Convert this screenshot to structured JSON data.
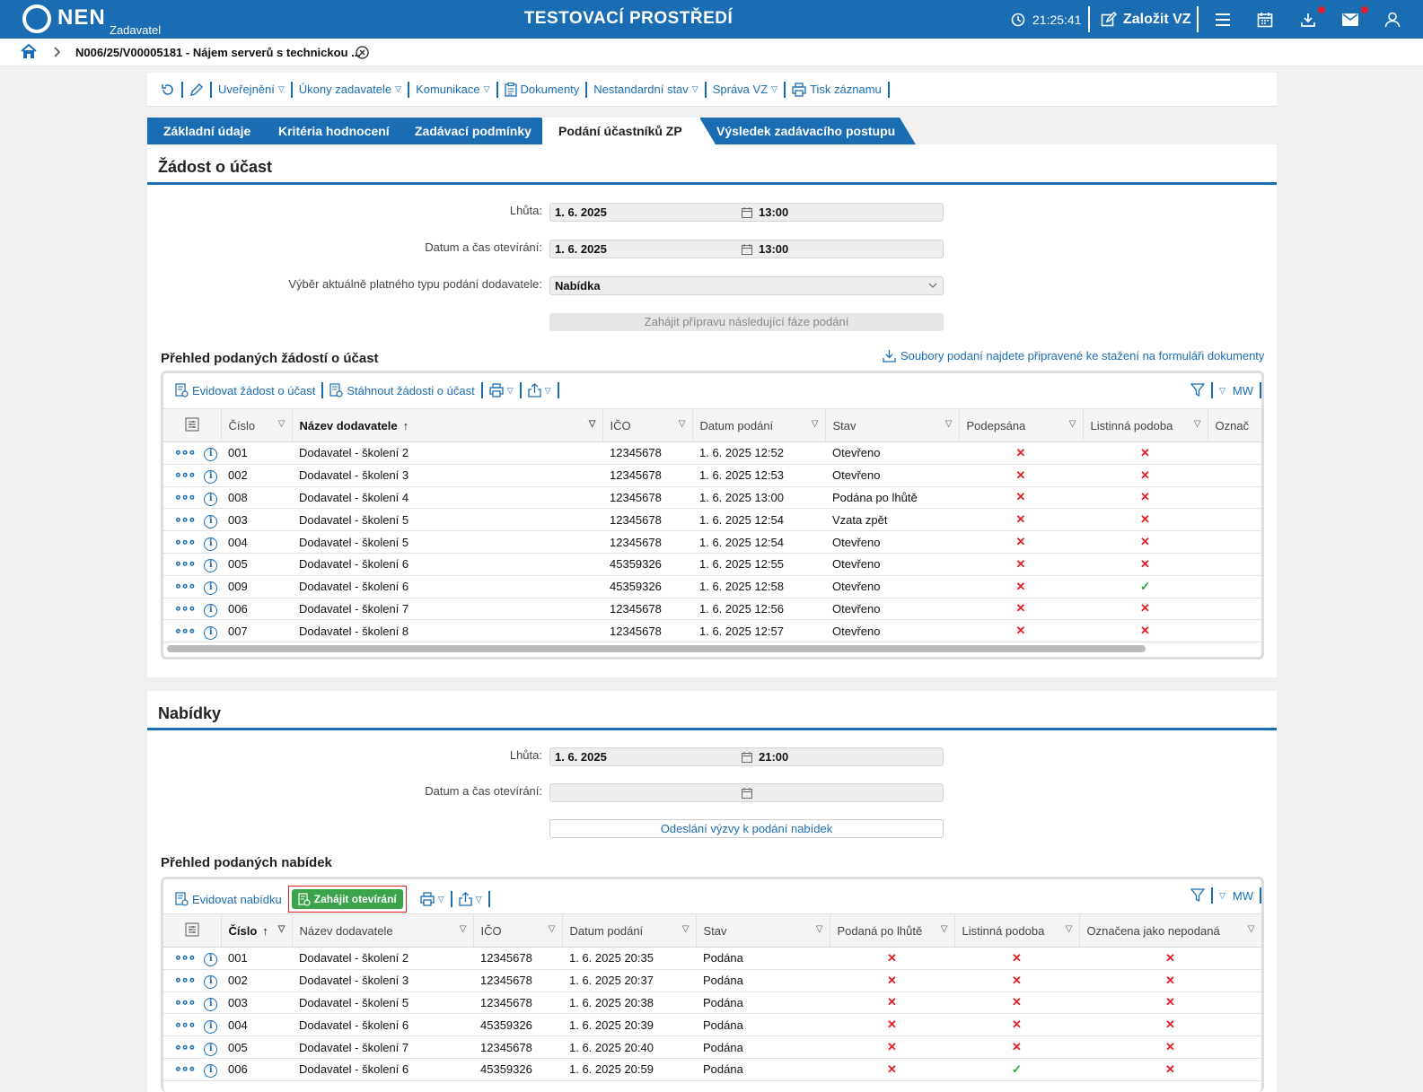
{
  "header": {
    "logo": "NEN",
    "logo_sub": "Zadavatel",
    "env_title": "TESTOVACÍ PROSTŘEDÍ",
    "time": "21:25:41",
    "create_label": "Založit VZ"
  },
  "breadcrumb": {
    "title": "N006/25/V00005181 - Nájem serverů s technickou ..."
  },
  "toolbar": {
    "items": [
      "Uveřejnění",
      "Úkony zadavatele",
      "Komunikace",
      "Dokumenty",
      "Nestandardní stav",
      "Správa VZ",
      "Tisk záznamu"
    ]
  },
  "tabs": [
    "Základní údaje",
    "Kritéria hodnocení",
    "Zadávací podmínky",
    "Podání účastníků ZP",
    "Výsledek zadávacího postupu"
  ],
  "zadost": {
    "title": "Žádost o účast",
    "lhuta_label": "Lhůta:",
    "lhuta_date": "1. 6. 2025",
    "lhuta_time": "13:00",
    "open_label": "Datum a čas otevírání:",
    "open_date": "1. 6. 2025",
    "open_time": "13:00",
    "type_label": "Výběr aktuálně platného typu podání dodavatele:",
    "type_value": "Nabídka",
    "prep_button": "Zahájit přípravu následující fáze podání",
    "overview_title": "Přehled podaných žádostí o účast",
    "download_link": "Soubory podaní najdete připravené ke stažení na formuláři dokumenty",
    "btn_evidovat": "Evidovat žádost o účast",
    "btn_stahnout": "Stáhnout žádosti o účast",
    "mw": "MW",
    "columns": [
      "Číslo",
      "Název dodavatele",
      "IČO",
      "Datum podání",
      "Stav",
      "Podepsána",
      "Listinná podoba",
      "Označ"
    ],
    "rows": [
      {
        "cislo": "001",
        "nazev": "Dodavatel - školení 2",
        "ico": "12345678",
        "datum": "1. 6. 2025 12:52",
        "stav": "Otevřeno",
        "podepsana": "✕",
        "listinna": "✕"
      },
      {
        "cislo": "002",
        "nazev": "Dodavatel - školení 3",
        "ico": "12345678",
        "datum": "1. 6. 2025 12:53",
        "stav": "Otevřeno",
        "podepsana": "✕",
        "listinna": "✕"
      },
      {
        "cislo": "008",
        "nazev": "Dodavatel - školení 4",
        "ico": "12345678",
        "datum": "1. 6. 2025 13:00",
        "stav": "Podána po lhůtě",
        "podepsana": "✕",
        "listinna": "✕"
      },
      {
        "cislo": "003",
        "nazev": "Dodavatel - školení 5",
        "ico": "12345678",
        "datum": "1. 6. 2025 12:54",
        "stav": "Vzata zpět",
        "podepsana": "✕",
        "listinna": "✕"
      },
      {
        "cislo": "004",
        "nazev": "Dodavatel - školení 5",
        "ico": "12345678",
        "datum": "1. 6. 2025 12:54",
        "stav": "Otevřeno",
        "podepsana": "✕",
        "listinna": "✕"
      },
      {
        "cislo": "005",
        "nazev": "Dodavatel - školení 6",
        "ico": "45359326",
        "datum": "1. 6. 2025 12:55",
        "stav": "Otevřeno",
        "podepsana": "✕",
        "listinna": "✕"
      },
      {
        "cislo": "009",
        "nazev": "Dodavatel - školení 6",
        "ico": "45359326",
        "datum": "1. 6. 2025 12:58",
        "stav": "Otevřeno",
        "podepsana": "✕",
        "listinna": "✓"
      },
      {
        "cislo": "006",
        "nazev": "Dodavatel - školení 7",
        "ico": "12345678",
        "datum": "1. 6. 2025 12:56",
        "stav": "Otevřeno",
        "podepsana": "✕",
        "listinna": "✕"
      },
      {
        "cislo": "007",
        "nazev": "Dodavatel - školení 8",
        "ico": "12345678",
        "datum": "1. 6. 2025 12:57",
        "stav": "Otevřeno",
        "podepsana": "✕",
        "listinna": "✕"
      }
    ]
  },
  "nabidky": {
    "title": "Nabídky",
    "lhuta_label": "Lhůta:",
    "lhuta_date": "1. 6. 2025",
    "lhuta_time": "21:00",
    "open_label": "Datum a čas otevírání:",
    "send_button": "Odeslání výzvy k podání nabídek",
    "overview_title": "Přehled podaných nabídek",
    "btn_evidovat": "Evidovat nabídku",
    "btn_zahajit": "Zahájit otevírání",
    "mw": "MW",
    "columns": [
      "Číslo",
      "Název dodavatele",
      "IČO",
      "Datum podání",
      "Stav",
      "Podaná po lhůtě",
      "Listinná podoba",
      "Označena jako nepodaná"
    ],
    "rows": [
      {
        "cislo": "001",
        "nazev": "Dodavatel - školení 2",
        "ico": "12345678",
        "datum": "1. 6. 2025 20:35",
        "stav": "Podána",
        "polhute": "✕",
        "listinna": "✕",
        "nepodana": "✕"
      },
      {
        "cislo": "002",
        "nazev": "Dodavatel - školení 3",
        "ico": "12345678",
        "datum": "1. 6. 2025 20:37",
        "stav": "Podána",
        "polhute": "✕",
        "listinna": "✕",
        "nepodana": "✕"
      },
      {
        "cislo": "003",
        "nazev": "Dodavatel - školení 5",
        "ico": "12345678",
        "datum": "1. 6. 2025 20:38",
        "stav": "Podána",
        "polhute": "✕",
        "listinna": "✕",
        "nepodana": "✕"
      },
      {
        "cislo": "004",
        "nazev": "Dodavatel - školení 6",
        "ico": "45359326",
        "datum": "1. 6. 2025 20:39",
        "stav": "Podána",
        "polhute": "✕",
        "listinna": "✕",
        "nepodana": "✕"
      },
      {
        "cislo": "005",
        "nazev": "Dodavatel - školení 7",
        "ico": "12345678",
        "datum": "1. 6. 2025 20:40",
        "stav": "Podána",
        "polhute": "✕",
        "listinna": "✕",
        "nepodana": "✕"
      },
      {
        "cislo": "006",
        "nazev": "Dodavatel - školení 6",
        "ico": "45359326",
        "datum": "1. 6. 2025 20:59",
        "stav": "Podána",
        "polhute": "✕",
        "listinna": "✓",
        "nepodana": "✕"
      }
    ]
  }
}
